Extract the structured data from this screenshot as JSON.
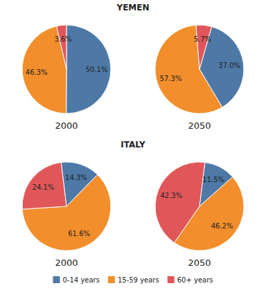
{
  "chart_data": [
    {
      "type": "pie",
      "title": "YEMEN",
      "subtitle": "2000",
      "categories": [
        "0-14 years",
        "15-59 years",
        "60+ years"
      ],
      "values": [
        50.1,
        46.3,
        3.6
      ],
      "value_labels": [
        "50.1%",
        "46.3%",
        "3.6%"
      ],
      "data_labels": true,
      "legend": "bottom"
    },
    {
      "type": "pie",
      "subtitle": "2050",
      "categories": [
        "0-14 years",
        "15-59 years",
        "60+ years"
      ],
      "values": [
        37.0,
        57.3,
        5.7
      ],
      "value_labels": [
        "37.0%",
        "57.3%",
        "5.7%"
      ],
      "data_labels": true
    },
    {
      "type": "pie",
      "title": "ITALY",
      "subtitle": "2000",
      "categories": [
        "0-14 years",
        "15-59 years",
        "60+ years"
      ],
      "values": [
        14.3,
        61.6,
        24.1
      ],
      "value_labels": [
        "14.3%",
        "61.6%",
        "24.1%"
      ],
      "data_labels": true
    },
    {
      "type": "pie",
      "subtitle": "2050",
      "categories": [
        "0-14 years",
        "15-59 years",
        "60+ years"
      ],
      "values": [
        11.5,
        46.2,
        42.3
      ],
      "value_labels": [
        "11.5%",
        "46.2%",
        "42.3%"
      ],
      "data_labels": true
    }
  ]
}
